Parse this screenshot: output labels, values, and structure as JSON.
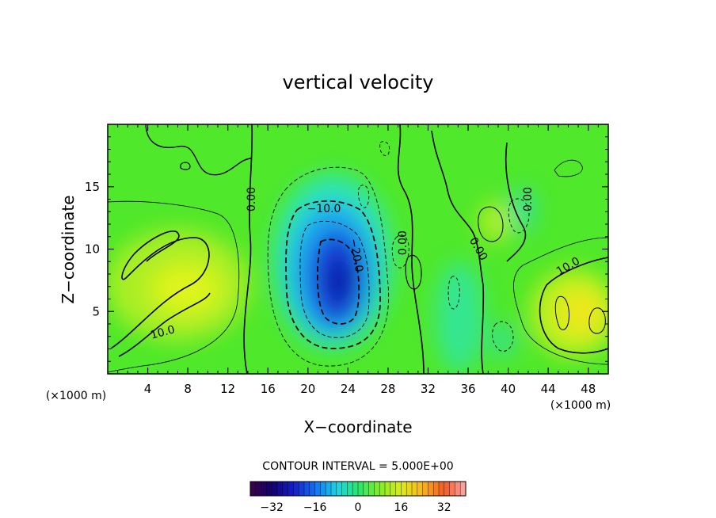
{
  "chart_data": {
    "type": "heatmap",
    "title": "vertical velocity",
    "xlabel": "X−coordinate",
    "ylabel": "Z−coordinate",
    "x_unit_note": "(×1000 m)",
    "y_unit_note": "(×1000 m)",
    "xlim": [
      0,
      50
    ],
    "ylim": [
      0,
      20
    ],
    "x_ticks": [
      4,
      8,
      12,
      16,
      20,
      24,
      28,
      32,
      36,
      40,
      44,
      48
    ],
    "y_ticks": [
      5,
      10,
      15
    ],
    "contour_interval_text": "CONTOUR INTERVAL = 5.000E+00",
    "contour_labels": [
      {
        "text": "0.00",
        "x": 14.4,
        "y": 14.0,
        "angle": -90
      },
      {
        "text": "−10.0",
        "x": 21.6,
        "y": 13.2,
        "angle": 0
      },
      {
        "text": "−20.0",
        "x": 24.8,
        "y": 9.5,
        "angle": 80
      },
      {
        "text": "0.00",
        "x": 29.5,
        "y": 10.5,
        "angle": -90
      },
      {
        "text": "0.00",
        "x": 37.0,
        "y": 10.0,
        "angle": 60
      },
      {
        "text": "0.00",
        "x": 42.0,
        "y": 14.0,
        "angle": -90
      },
      {
        "text": "10.0",
        "x": 46.0,
        "y": 8.6,
        "angle": -30
      },
      {
        "text": "10.0",
        "x": 5.5,
        "y": 3.3,
        "angle": -15
      }
    ],
    "colorbar": {
      "min": -40,
      "max": 40,
      "tick_values": [
        -32,
        -16,
        0,
        16,
        32
      ],
      "tick_labels": [
        "−32",
        "−16",
        "0",
        "16",
        "32"
      ]
    },
    "field_features": [
      {
        "kind": "downdraft",
        "x": 23,
        "y": 8,
        "peak": -25
      },
      {
        "kind": "updraft",
        "x": 7,
        "y": 7,
        "peak": 13
      },
      {
        "kind": "updraft",
        "x": 46,
        "y": 5,
        "peak": 14
      },
      {
        "kind": "updraft",
        "x": 38,
        "y": 12,
        "peak": 7
      },
      {
        "kind": "downdraft",
        "x": 33,
        "y": 4,
        "peak": -6
      },
      {
        "kind": "downdraft",
        "x": 41,
        "y": 13,
        "peak": -7
      }
    ]
  }
}
